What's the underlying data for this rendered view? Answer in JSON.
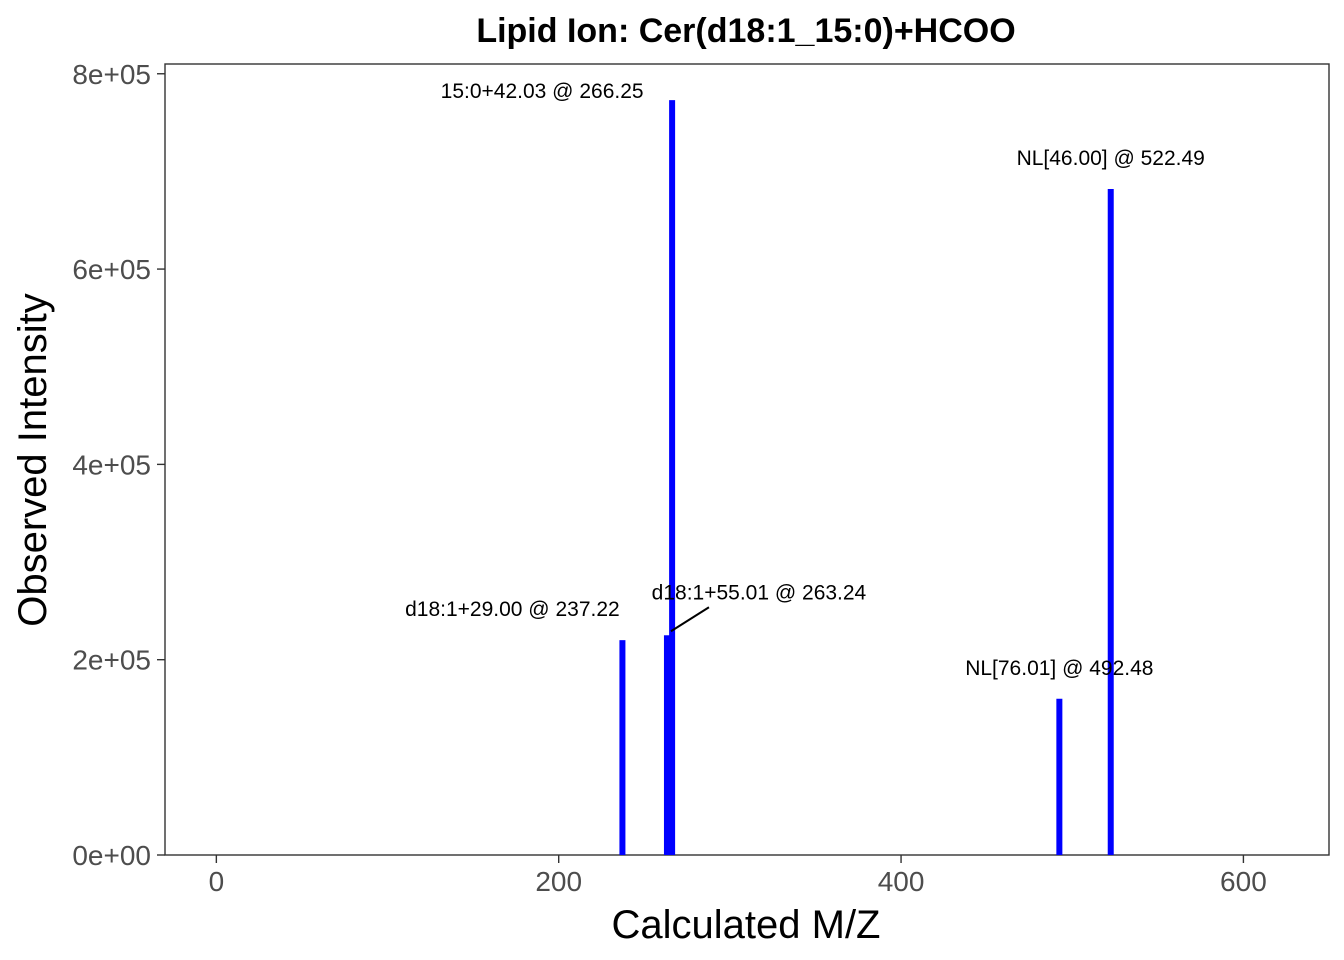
{
  "chart_data": {
    "type": "bar",
    "title": "Lipid Ion: Cer(d18:1_15:0)+HCOO",
    "xlabel": "Calculated M/Z",
    "ylabel": "Observed Intensity",
    "xlim": [
      -30,
      650
    ],
    "ylim": [
      0,
      810000
    ],
    "x_ticks": [
      0,
      200,
      400,
      600
    ],
    "x_tick_labels": [
      "0",
      "200",
      "400",
      "600"
    ],
    "y_ticks": [
      0,
      200000,
      400000,
      600000,
      800000
    ],
    "y_tick_labels": [
      "0e+00",
      "2e+05",
      "4e+05",
      "6e+05",
      "8e+05"
    ],
    "grid": false,
    "bar_color": "#0000ff",
    "peaks": [
      {
        "mz": 237.22,
        "intensity": 220000,
        "label": "d18:1+29.00 @ 237.22"
      },
      {
        "mz": 263.24,
        "intensity": 225000,
        "label": "d18:1+55.01 @ 263.24"
      },
      {
        "mz": 266.25,
        "intensity": 773000,
        "label": "15:0+42.03 @ 266.25"
      },
      {
        "mz": 492.48,
        "intensity": 160000,
        "label": "NL[76.01] @ 492.48"
      },
      {
        "mz": 522.49,
        "intensity": 682000,
        "label": "NL[46.00] @ 522.49"
      }
    ]
  }
}
